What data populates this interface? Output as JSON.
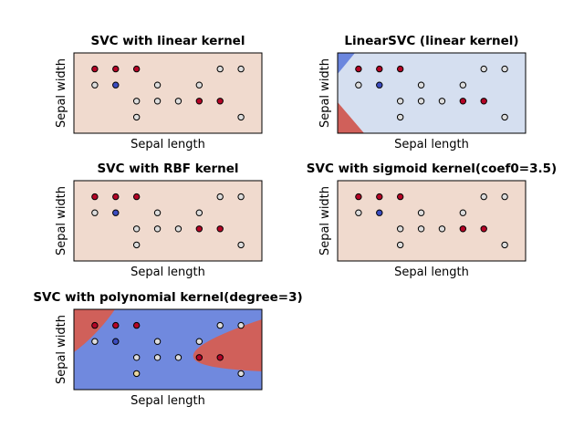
{
  "chart_data": [
    {
      "type": "scatter",
      "title": "SVC with linear kernel",
      "x_label": "Sepal length",
      "y_label": "Sepal width",
      "background": "#f0dace",
      "x": [
        1,
        2,
        3,
        7,
        8,
        1,
        2,
        4,
        6,
        3,
        4,
        5,
        6,
        7,
        3,
        8
      ],
      "values": [
        4,
        4,
        4,
        4,
        4,
        3,
        3,
        3,
        3,
        2,
        2,
        2,
        2,
        2,
        1,
        1
      ],
      "point_colors": [
        "#b40426",
        "#b40426",
        "#b40426",
        "#dddddd",
        "#dddddd",
        "#dddddd",
        "#3b4cc0",
        "#dddddd",
        "#dddddd",
        "#dddddd",
        "#dddddd",
        "#dddddd",
        "#b40426",
        "#b40426",
        "#dddddd",
        "#dddddd"
      ],
      "xlim": [
        0,
        9
      ],
      "ylim": [
        0,
        5
      ]
    },
    {
      "type": "scatter",
      "title": "LinearSVC (linear kernel)",
      "x_label": "Sepal length",
      "y_label": "Sepal width",
      "background": "#d5dff0",
      "x": [
        1,
        2,
        3,
        7,
        8,
        1,
        2,
        4,
        6,
        3,
        4,
        5,
        6,
        7,
        3,
        8
      ],
      "values": [
        4,
        4,
        4,
        4,
        4,
        3,
        3,
        3,
        3,
        2,
        2,
        2,
        2,
        2,
        1,
        1
      ],
      "point_colors": [
        "#b40426",
        "#b40426",
        "#b40426",
        "#dddddd",
        "#dddddd",
        "#dddddd",
        "#3b4cc0",
        "#dddddd",
        "#dddddd",
        "#dddddd",
        "#dddddd",
        "#dddddd",
        "#b40426",
        "#b40426",
        "#dddddd",
        "#dddddd"
      ],
      "xlim": [
        0,
        9
      ],
      "ylim": [
        0,
        5
      ]
    },
    {
      "type": "scatter",
      "title": "SVC with RBF kernel",
      "x_label": "Sepal length",
      "y_label": "Sepal width",
      "background": "#f0dace",
      "x": [
        1,
        2,
        3,
        7,
        8,
        1,
        2,
        4,
        6,
        3,
        4,
        5,
        6,
        7,
        3,
        8
      ],
      "values": [
        4,
        4,
        4,
        4,
        4,
        3,
        3,
        3,
        3,
        2,
        2,
        2,
        2,
        2,
        1,
        1
      ],
      "point_colors": [
        "#b40426",
        "#b40426",
        "#b40426",
        "#dddddd",
        "#dddddd",
        "#dddddd",
        "#3b4cc0",
        "#dddddd",
        "#dddddd",
        "#dddddd",
        "#dddddd",
        "#dddddd",
        "#b40426",
        "#b40426",
        "#dddddd",
        "#dddddd"
      ],
      "xlim": [
        0,
        9
      ],
      "ylim": [
        0,
        5
      ]
    },
    {
      "type": "scatter",
      "title": "SVC with sigmoid kernel(coef0=3.5)",
      "x_label": "Sepal length",
      "y_label": "Sepal width",
      "background": "#f0dace",
      "x": [
        1,
        2,
        3,
        7,
        8,
        1,
        2,
        4,
        6,
        3,
        4,
        5,
        6,
        7,
        3,
        8
      ],
      "values": [
        4,
        4,
        4,
        4,
        4,
        3,
        3,
        3,
        3,
        2,
        2,
        2,
        2,
        2,
        1,
        1
      ],
      "point_colors": [
        "#b40426",
        "#b40426",
        "#b40426",
        "#dddddd",
        "#dddddd",
        "#dddddd",
        "#3b4cc0",
        "#dddddd",
        "#dddddd",
        "#dddddd",
        "#dddddd",
        "#dddddd",
        "#b40426",
        "#b40426",
        "#dddddd",
        "#dddddd"
      ],
      "xlim": [
        0,
        9
      ],
      "ylim": [
        0,
        5
      ]
    },
    {
      "type": "scatter",
      "title": "SVC with polynomial kernel(degree=3)",
      "x_label": "Sepal length",
      "y_label": "Sepal width",
      "background": "#7089de",
      "x": [
        1,
        2,
        3,
        7,
        8,
        1,
        2,
        4,
        6,
        3,
        4,
        5,
        6,
        7,
        3,
        8
      ],
      "values": [
        4,
        4,
        4,
        4,
        4,
        3,
        3,
        3,
        3,
        2,
        2,
        2,
        2,
        2,
        1,
        1
      ],
      "point_colors": [
        "#b40426",
        "#b40426",
        "#b40426",
        "#dddddd",
        "#dddddd",
        "#dddddd",
        "#3b4cc0",
        "#dddddd",
        "#dddddd",
        "#dddddd",
        "#dddddd",
        "#dddddd",
        "#b40426",
        "#b40426",
        "#e8d6a0",
        "#dddddd"
      ],
      "xlim": [
        0,
        9
      ],
      "ylim": [
        0,
        5
      ]
    }
  ]
}
